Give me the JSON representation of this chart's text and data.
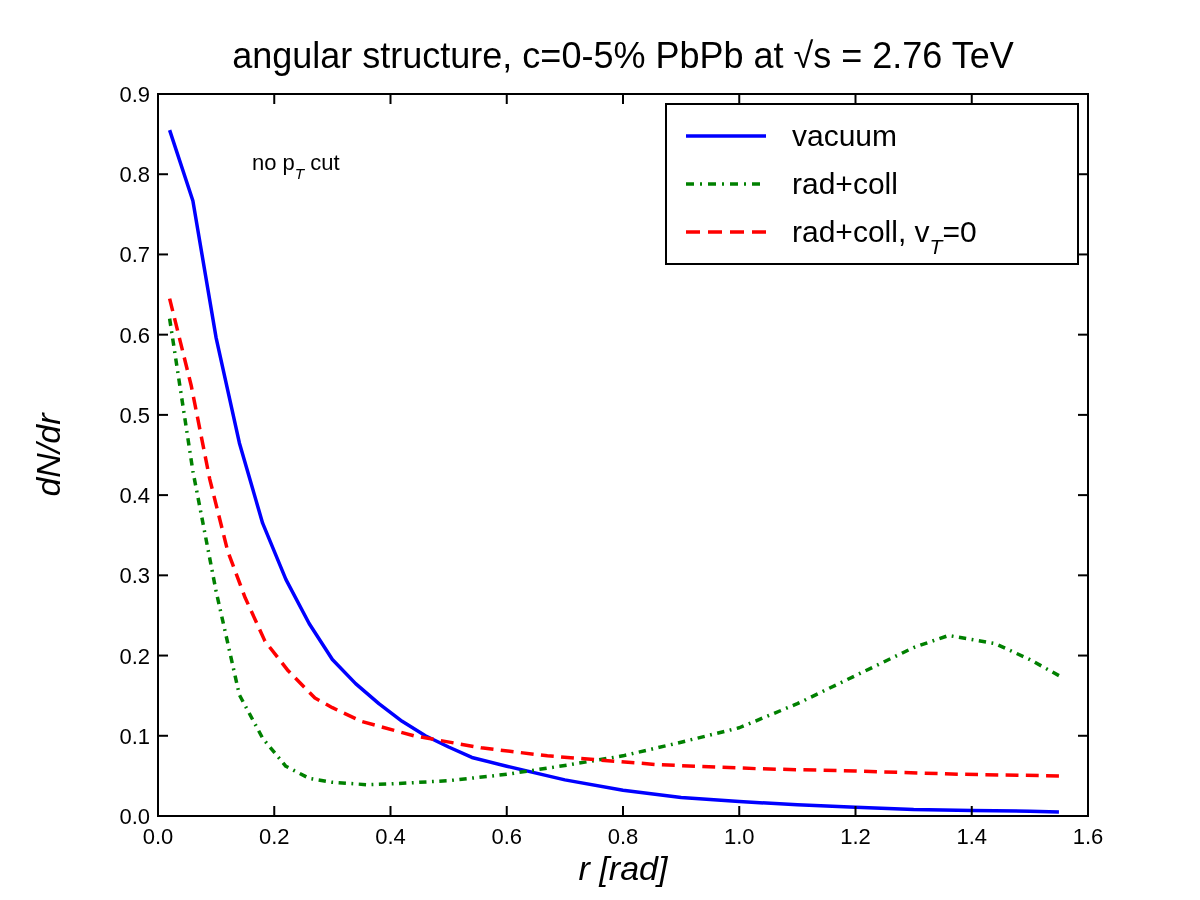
{
  "chart_data": {
    "type": "line",
    "title": "angular structure, c=0-5% PbPb at √s = 2.76 TeV",
    "xlabel": "r [rad]",
    "ylabel": "dN/dr",
    "annotations": [
      "no p$_{T}$ cut"
    ],
    "xlim": [
      0,
      1.6
    ],
    "ylim": [
      0,
      0.9
    ],
    "xticks": [
      {
        "value": 0,
        "label": "0.0"
      },
      0.2,
      0.4,
      0.6,
      0.8,
      {
        "value": 1,
        "label": "1.0"
      },
      1.2,
      1.4,
      1.6
    ],
    "yticks": [
      {
        "value": 0,
        "label": "0.0"
      },
      0.1,
      0.2,
      0.3,
      0.4,
      0.5,
      0.6,
      0.7,
      0.8,
      0.9
    ],
    "grid": false,
    "legend": "top right",
    "marker": "none",
    "series": [
      {
        "name": "vacuum",
        "color": "#0000ff",
        "line_style": "solid",
        "x": [
          0.02,
          0.06,
          0.1,
          0.14,
          0.18,
          0.22,
          0.26,
          0.3,
          0.34,
          0.38,
          0.42,
          0.46,
          0.5,
          0.54,
          0.6,
          0.7,
          0.8,
          0.9,
          1.0,
          1.1,
          1.2,
          1.3,
          1.4,
          1.5,
          1.55
        ],
        "values": [
          0.855,
          0.767,
          0.596,
          0.465,
          0.365,
          0.295,
          0.24,
          0.195,
          0.165,
          0.14,
          0.118,
          0.1,
          0.086,
          0.073,
          0.062,
          0.045,
          0.032,
          0.023,
          0.018,
          0.014,
          0.011,
          0.008,
          0.007,
          0.006,
          0.005
        ]
      },
      {
        "name": "rad+coll",
        "color": "#008000",
        "line_style": "dashdot",
        "x": [
          0.02,
          0.06,
          0.1,
          0.14,
          0.18,
          0.22,
          0.26,
          0.3,
          0.36,
          0.4,
          0.5,
          0.6,
          0.7,
          0.8,
          0.9,
          1.0,
          1.1,
          1.2,
          1.3,
          1.36,
          1.44,
          1.5,
          1.55
        ],
        "values": [
          0.62,
          0.43,
          0.28,
          0.151,
          0.097,
          0.062,
          0.047,
          0.042,
          0.039,
          0.04,
          0.044,
          0.052,
          0.063,
          0.075,
          0.092,
          0.11,
          0.14,
          0.175,
          0.21,
          0.225,
          0.215,
          0.195,
          0.175
        ]
      },
      {
        "name": "rad+coll, v$_{T}$=0",
        "color": "#ff0000",
        "line_style": "dashed",
        "x": [
          0.02,
          0.057,
          0.089,
          0.12,
          0.15,
          0.184,
          0.224,
          0.27,
          0.3,
          0.35,
          0.44,
          0.556,
          0.67,
          0.86,
          1.03,
          1.2,
          1.38,
          1.55
        ],
        "values": [
          0.645,
          0.537,
          0.42,
          0.33,
          0.272,
          0.218,
          0.181,
          0.147,
          0.135,
          0.118,
          0.1,
          0.085,
          0.075,
          0.064,
          0.059,
          0.056,
          0.052,
          0.05
        ]
      }
    ]
  }
}
